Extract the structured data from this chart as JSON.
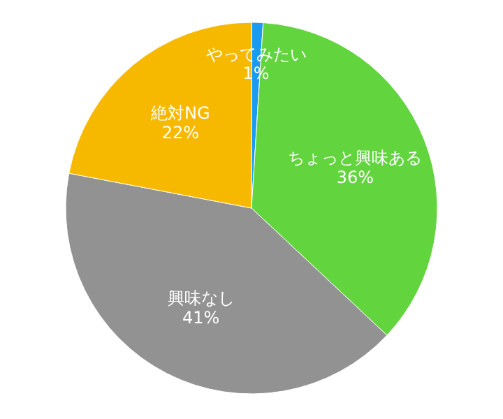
{
  "chart_data": {
    "type": "pie",
    "categories": [
      "やってみたい",
      "ちょっと興味ある",
      "興味なし",
      "絶対NG"
    ],
    "values": [
      1,
      36,
      41,
      22
    ],
    "colors": [
      "#1a9bf0",
      "#62d43e",
      "#929292",
      "#f7b900"
    ],
    "value_labels": [
      "1%",
      "36%",
      "41%",
      "22%"
    ]
  }
}
